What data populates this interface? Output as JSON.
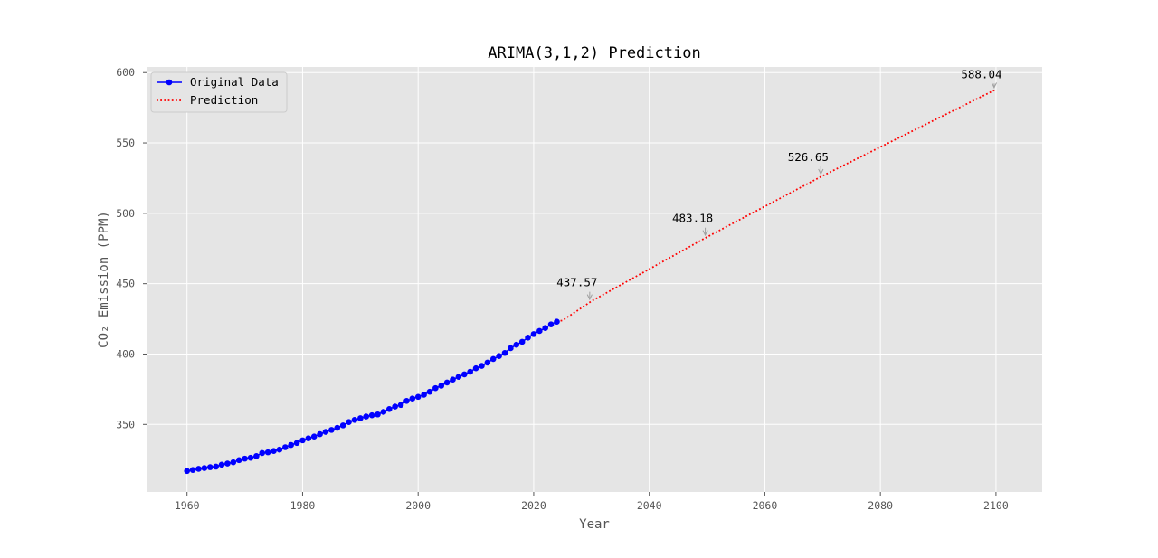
{
  "chart_data": {
    "type": "line",
    "title": "ARIMA(3,1,2) Prediction",
    "xlabel": "Year",
    "ylabel": "CO₂ Emission (PPM)",
    "xlim": [
      1953,
      2108
    ],
    "ylim": [
      302,
      604
    ],
    "xticks": [
      1960,
      1980,
      2000,
      2020,
      2040,
      2060,
      2080,
      2100
    ],
    "yticks": [
      350,
      400,
      450,
      500,
      550,
      600
    ],
    "grid": true,
    "legend_position": "top-left",
    "colors": {
      "plot_bg": "#e5e5e5",
      "grid": "#ffffff",
      "original": "#0000ff",
      "prediction": "#ff0000",
      "annotation_arrow": "#a0a0a0"
    },
    "series": [
      {
        "name": "Original Data",
        "style": "solid-line-with-dots",
        "color": "#0000ff",
        "x": [
          1960,
          1961,
          1962,
          1963,
          1964,
          1965,
          1966,
          1967,
          1968,
          1969,
          1970,
          1971,
          1972,
          1973,
          1974,
          1975,
          1976,
          1977,
          1978,
          1979,
          1980,
          1981,
          1982,
          1983,
          1984,
          1985,
          1986,
          1987,
          1988,
          1989,
          1990,
          1991,
          1992,
          1993,
          1994,
          1995,
          1996,
          1997,
          1998,
          1999,
          2000,
          2001,
          2002,
          2003,
          2004,
          2005,
          2006,
          2007,
          2008,
          2009,
          2010,
          2011,
          2012,
          2013,
          2014,
          2015,
          2016,
          2017,
          2018,
          2019,
          2020,
          2021,
          2022,
          2023,
          2024
        ],
        "y": [
          316.9,
          317.6,
          318.4,
          319.0,
          319.6,
          320.0,
          321.4,
          322.2,
          323.1,
          324.6,
          325.7,
          326.3,
          327.5,
          329.7,
          330.2,
          331.1,
          332.1,
          333.8,
          335.4,
          336.8,
          338.7,
          340.1,
          341.4,
          343.1,
          344.7,
          346.1,
          347.6,
          349.3,
          351.7,
          353.2,
          354.4,
          355.6,
          356.5,
          357.1,
          358.9,
          360.9,
          362.7,
          363.8,
          366.7,
          368.4,
          369.6,
          371.1,
          373.2,
          375.8,
          377.5,
          379.8,
          381.9,
          383.8,
          385.6,
          387.4,
          389.9,
          391.6,
          393.9,
          396.5,
          398.6,
          400.8,
          404.2,
          406.6,
          408.7,
          411.7,
          414.2,
          416.4,
          418.5,
          421.1,
          423.0
        ]
      },
      {
        "name": "Prediction",
        "style": "dotted-line",
        "color": "#ff0000",
        "x": [
          2025,
          2030,
          2050,
          2070,
          2100
        ],
        "y": [
          423.9,
          437.57,
          483.18,
          526.65,
          588.04
        ]
      }
    ],
    "annotations": [
      {
        "text": "437.57",
        "x": 2030,
        "y": 437.57,
        "label_dx": -2.5,
        "label_dy": 10.5
      },
      {
        "text": "483.18",
        "x": 2050,
        "y": 483.18,
        "label_dx": -2.5,
        "label_dy": 10.5
      },
      {
        "text": "526.65",
        "x": 2070,
        "y": 526.65,
        "label_dx": -2.5,
        "label_dy": 10.5
      },
      {
        "text": "588.04",
        "x": 2100,
        "y": 588.04,
        "label_dx": -2.5,
        "label_dy": 8.0
      }
    ]
  }
}
